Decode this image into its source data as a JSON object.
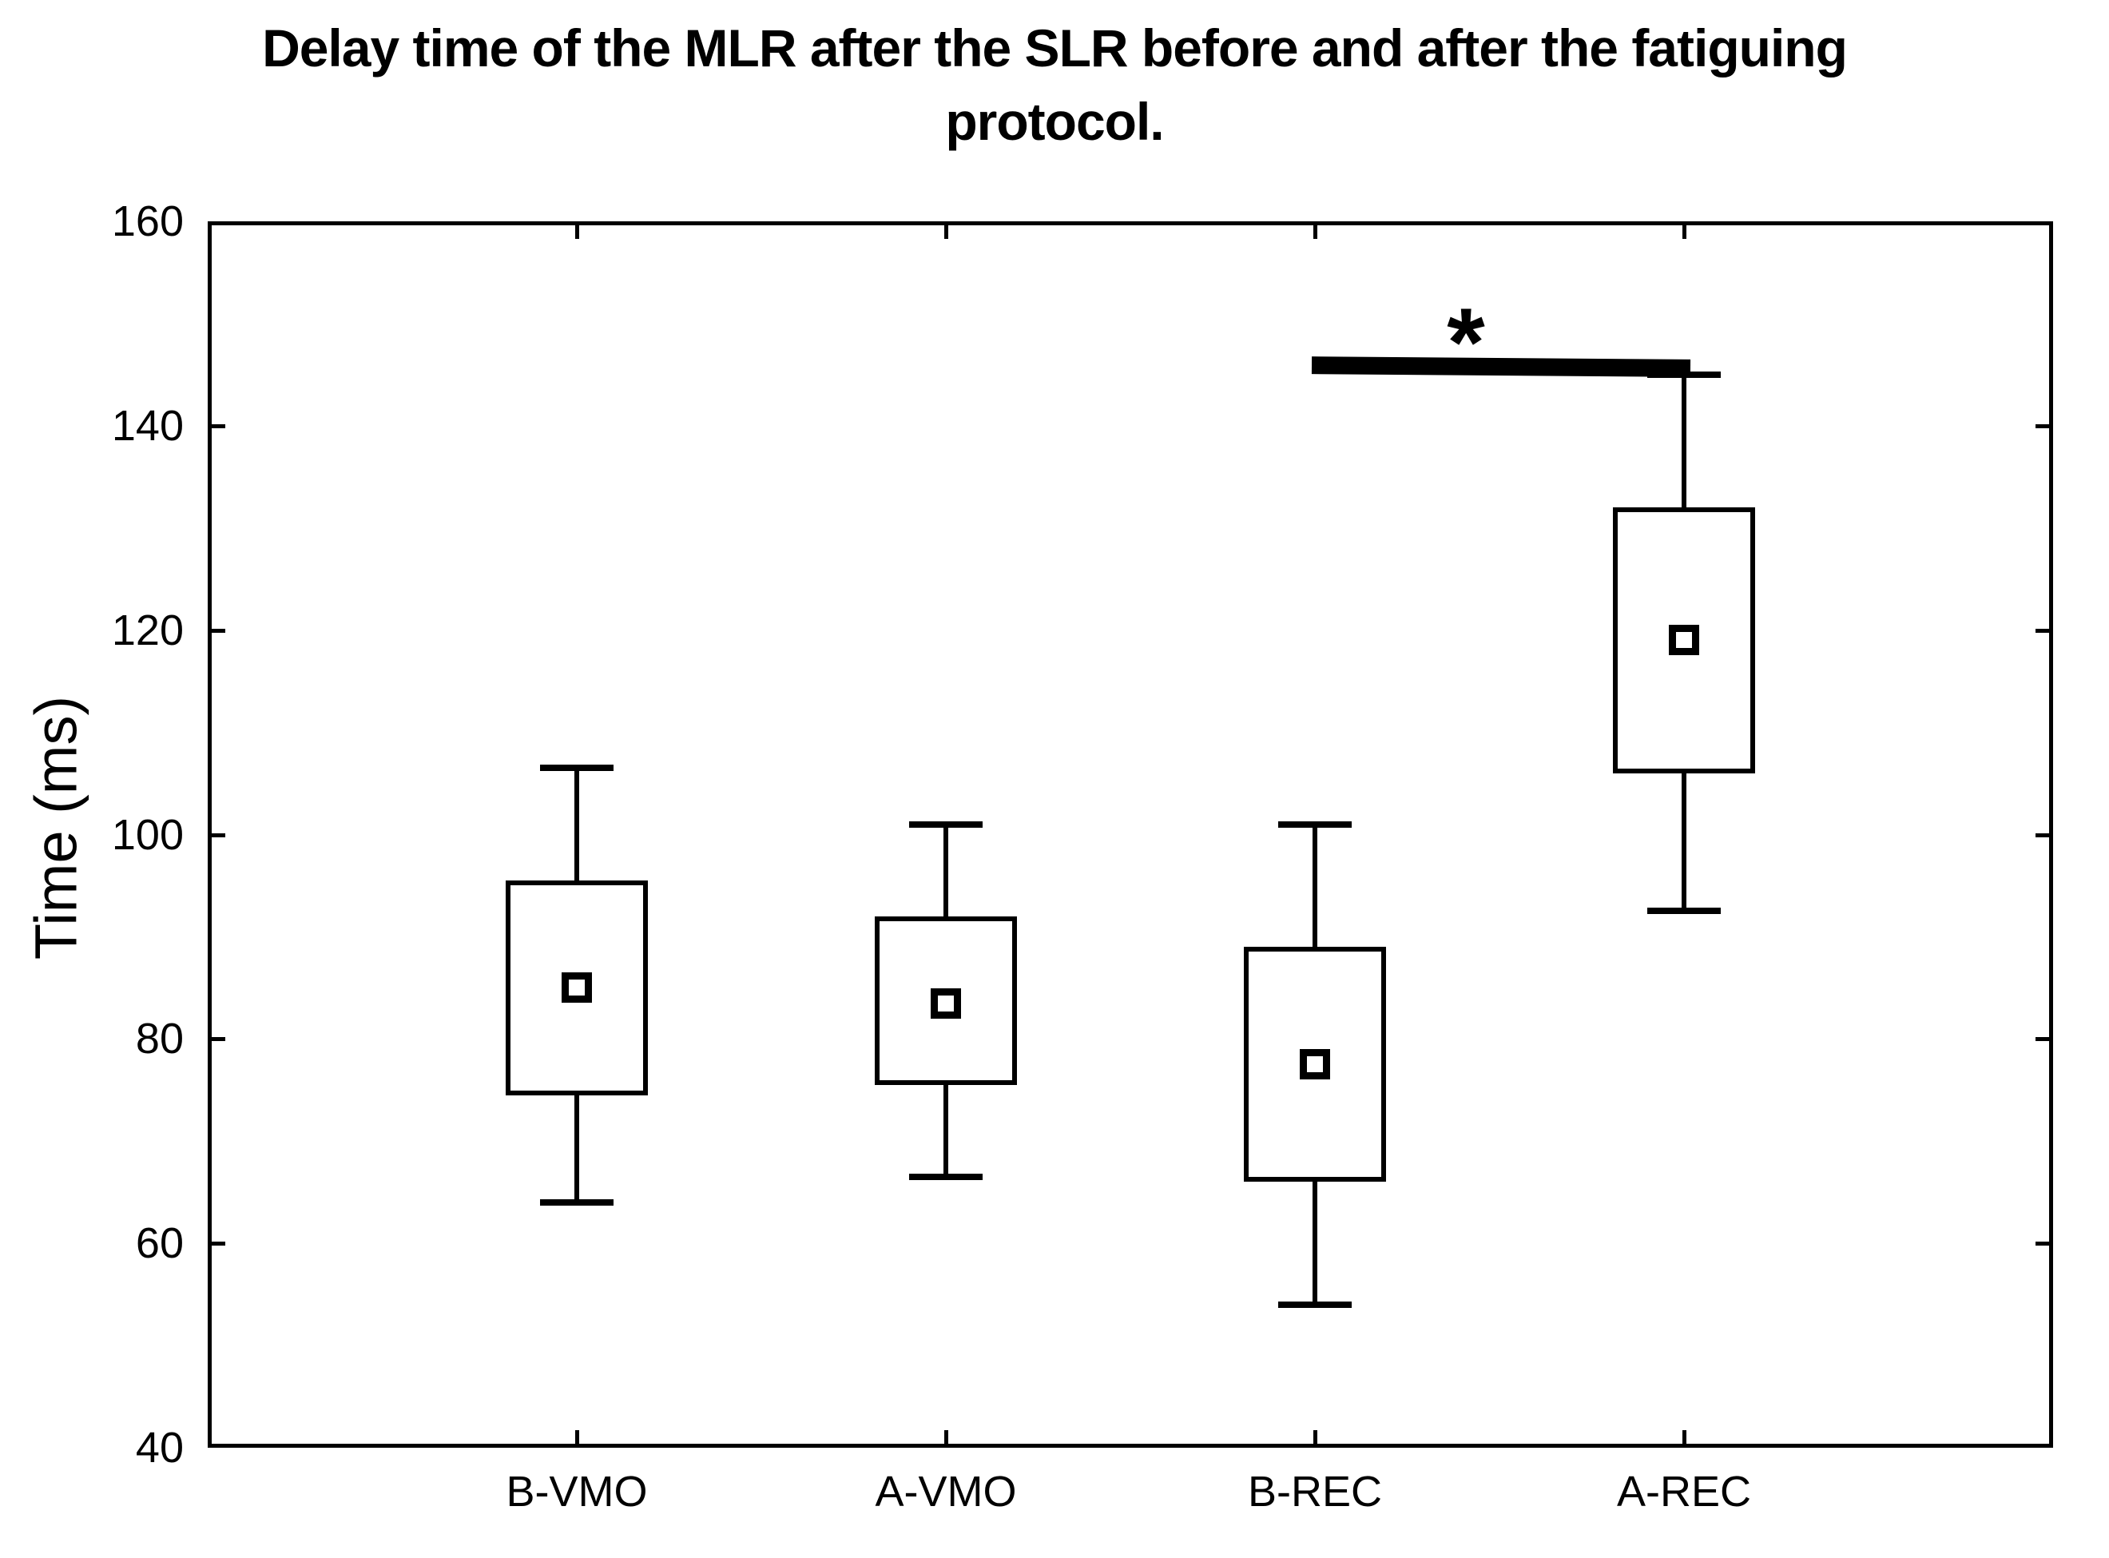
{
  "header": {
    "title_lines": [
      "Delay time of the MLR after the SLR before and after the fatiguing",
      "protocol."
    ]
  },
  "colors": {
    "ink": "#000000",
    "paper": "#ffffff"
  },
  "chart_data": {
    "type": "box",
    "title": "Delay time of the MLR after the SLR before and after the fatiguing protocol.",
    "xlabel": "",
    "ylabel": "Time (ms)",
    "ylim": [
      40,
      160
    ],
    "yticks": [
      40,
      60,
      80,
      100,
      120,
      140,
      160
    ],
    "grid": false,
    "legend_position": "none",
    "mean_marker": "open-square",
    "categories": [
      "B-VMO",
      "A-VMO",
      "B-REC",
      "A-REC"
    ],
    "series": [
      {
        "name": "B-VMO",
        "whisker_low": 64,
        "q1": 74.5,
        "mean": 85,
        "q3": 95.5,
        "whisker_high": 106.5
      },
      {
        "name": "A-VMO",
        "whisker_low": 66.5,
        "q1": 75.5,
        "mean": 83.5,
        "q3": 92,
        "whisker_high": 101
      },
      {
        "name": "B-REC",
        "whisker_low": 54,
        "q1": 66,
        "mean": 77.5,
        "q3": 89,
        "whisker_high": 101
      },
      {
        "name": "A-REC",
        "whisker_low": 92.5,
        "q1": 106,
        "mean": 119,
        "q3": 132,
        "whisker_high": 145
      }
    ],
    "annotations": {
      "significance": {
        "from": "B-REC",
        "to": "A-REC",
        "value": 145.8,
        "label": "*"
      }
    }
  }
}
